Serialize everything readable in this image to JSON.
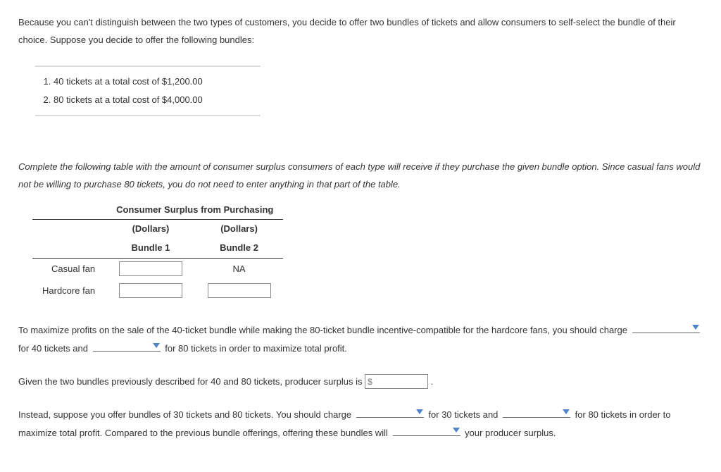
{
  "intro": "Because you can't distinguish between the two types of customers, you decide to offer two bundles of tickets and allow consumers to self-select the bundle of their choice. Suppose you decide to offer the following bundles:",
  "bundles": {
    "item1": "40 tickets at a total cost of $1,200.00",
    "item2": "80 tickets at a total cost of $4,000.00"
  },
  "instructions": "Complete the following table with the amount of consumer surplus consumers of each type will receive if they purchase the given bundle option. Since casual fans would not be willing to purchase 80 tickets, you do not need to enter anything in that part of the table.",
  "table": {
    "title": "Consumer Surplus from Purchasing",
    "unit1": "(Dollars)",
    "unit2": "(Dollars)",
    "col1": "Bundle 1",
    "col2": "Bundle 2",
    "row1": "Casual fan",
    "row2": "Hardcore fan",
    "na": "NA"
  },
  "q1": {
    "pre": "To maximize profits on the sale of the 40-ticket bundle while making the 80-ticket bundle incentive-compatible for the hardcore fans, you should charge",
    "mid": "for 40 tickets and",
    "post": "for 80 tickets in order to maximize total profit."
  },
  "q2": {
    "pre": "Given the two bundles previously described for 40 and 80 tickets, producer surplus is",
    "placeholder": "$",
    "post": "."
  },
  "q3": {
    "pre": "Instead, suppose you offer bundles of 30 tickets and 80 tickets. You should charge",
    "mid1": "for 30 tickets and",
    "mid2": "for 80 tickets in order to maximize total profit. Compared to the previous bundle offerings, offering these bundles will",
    "post": "your producer surplus."
  }
}
